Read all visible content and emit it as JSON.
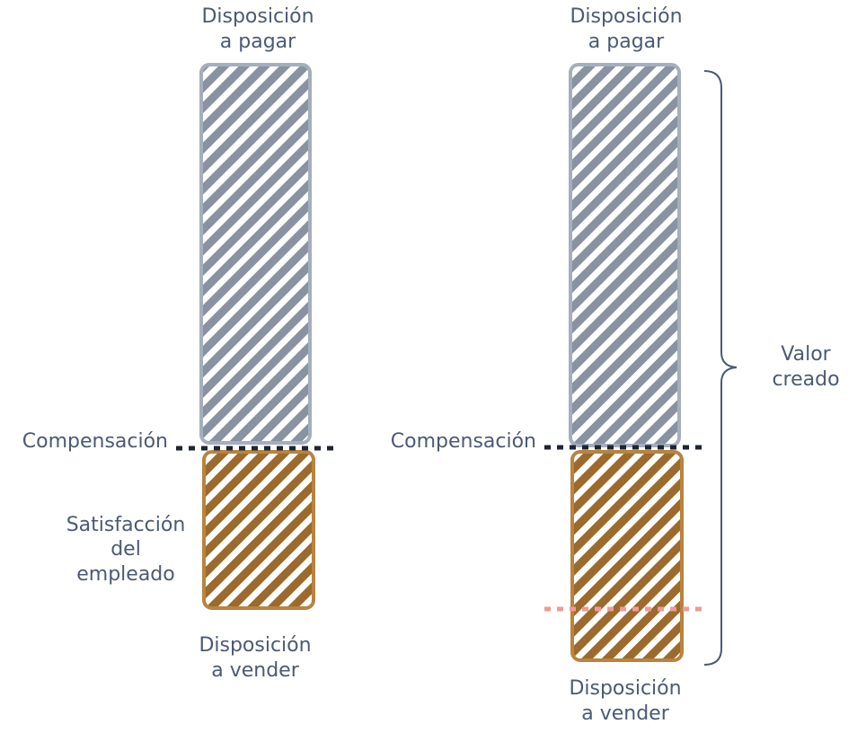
{
  "colors": {
    "text": "#4b5a74",
    "wtp_fill": "#8892a0",
    "wtp_border": "#a5aebc",
    "wts_fill": "#9b6a2c",
    "wts_border": "#b8843e",
    "compensation_line": "#1e2433",
    "extra_line": "#ef9a98",
    "brace": "#4b5a74"
  },
  "left": {
    "wtp_line1": "Disposición",
    "wtp_line2": "a pagar",
    "compensation": "Compensación",
    "satisfaction_line1": "Satisfacción",
    "satisfaction_line2": "del",
    "satisfaction_line3": "empleado",
    "wts_line1": "Disposición",
    "wts_line2": "a vender"
  },
  "right": {
    "wtp_line1": "Disposición",
    "wtp_line2": "a pagar",
    "compensation": "Compensación",
    "value_line1": "Valor",
    "value_line2": "creado",
    "wts_line1": "Disposición",
    "wts_line2": "a vender"
  }
}
